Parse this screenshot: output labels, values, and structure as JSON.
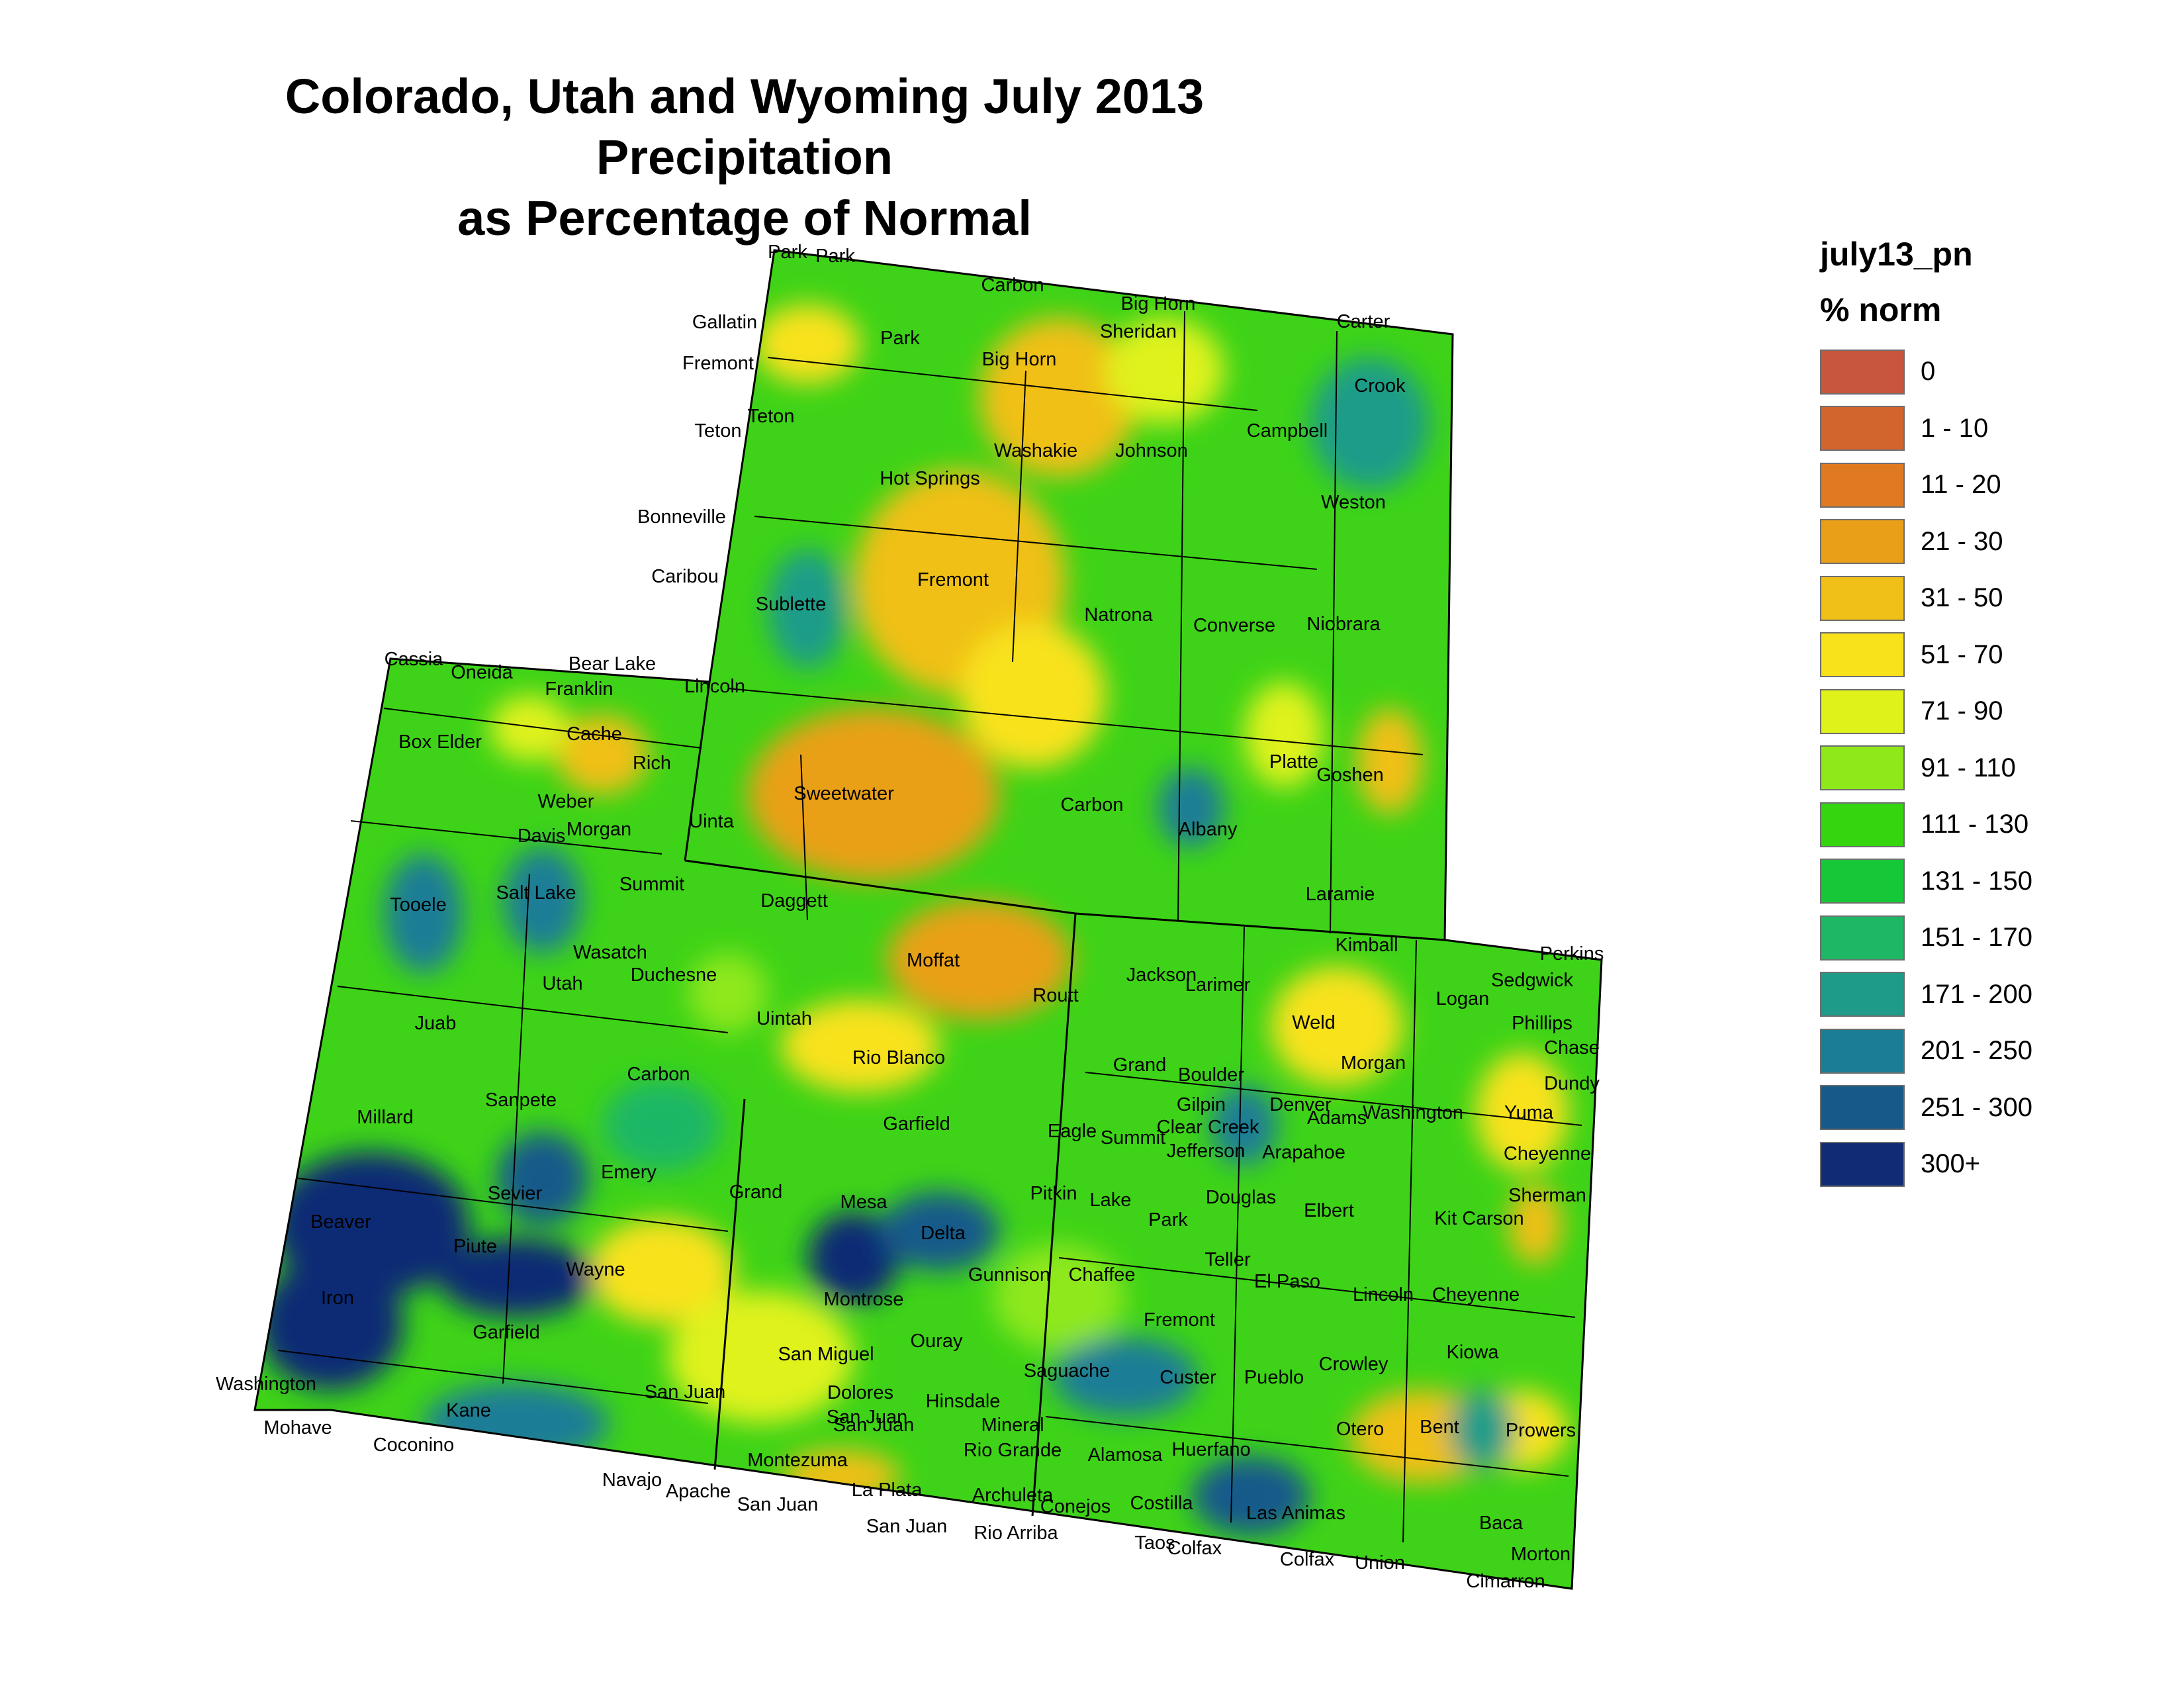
{
  "title": {
    "line1": "Colorado, Utah and Wyoming July 2013 Precipitation",
    "line2": "as Percentage of Normal"
  },
  "legend": {
    "field": "july13_pn",
    "unit": "% norm",
    "classes": [
      {
        "label": "0",
        "color": "#c8553d"
      },
      {
        "label": "1 - 10",
        "color": "#d2642e"
      },
      {
        "label": "11 - 20",
        "color": "#e07a22"
      },
      {
        "label": "21 - 30",
        "color": "#e9a018"
      },
      {
        "label": "31 - 50",
        "color": "#f0c019"
      },
      {
        "label": "51 - 70",
        "color": "#f8e21b"
      },
      {
        "label": "71 - 90",
        "color": "#dff21a"
      },
      {
        "label": "91 - 110",
        "color": "#8ee81a"
      },
      {
        "label": "111 - 130",
        "color": "#35d60f"
      },
      {
        "label": "131 - 150",
        "color": "#16c838"
      },
      {
        "label": "151 - 170",
        "color": "#1db766"
      },
      {
        "label": "171 - 200",
        "color": "#1e9c89"
      },
      {
        "label": "201 - 250",
        "color": "#1c7d96"
      },
      {
        "label": "251 - 300",
        "color": "#175a8a"
      },
      {
        "label": "300+",
        "color": "#112c74"
      }
    ]
  },
  "counties": [
    "Park",
    "Park",
    "Carbon",
    "Big Horn",
    "Sheridan",
    "Carter",
    "Gallatin",
    "Fremont",
    "Park",
    "Big Horn",
    "Crook",
    "Teton",
    "Teton",
    "Washakie",
    "Johnson",
    "Campbell",
    "Hot Springs",
    "Weston",
    "Bonneville",
    "Fremont",
    "Caribou",
    "Sublette",
    "Natrona",
    "Converse",
    "Niobrara",
    "Cassia",
    "Oneida",
    "Bear Lake",
    "Franklin",
    "Lincoln",
    "Cache",
    "Box Elder",
    "Rich",
    "Platte",
    "Goshen",
    "Sweetwater",
    "Weber",
    "Carbon",
    "Morgan",
    "Davis",
    "Uinta",
    "Albany",
    "Summit",
    "Salt Lake",
    "Tooele",
    "Daggett",
    "Laramie",
    "Kimball",
    "Perkins",
    "Wasatch",
    "Moffat",
    "Jackson",
    "Sedgwick",
    "Duchesne",
    "Larimer",
    "Logan",
    "Utah",
    "Routt",
    "Uintah",
    "Juab",
    "Weld",
    "Phillips",
    "Chase",
    "Rio Blanco",
    "Carbon",
    "Grand",
    "Morgan",
    "Boulder",
    "Dundy",
    "Sanpete",
    "Gilpin",
    "Denver",
    "Millard",
    "Washington",
    "Yuma",
    "Adams",
    "Garfield",
    "Eagle",
    "Clear Creek",
    "Summit",
    "Emery",
    "Jefferson",
    "Arapahoe",
    "Cheyenne",
    "Sevier",
    "Grand",
    "Mesa",
    "Pitkin",
    "Lake",
    "Douglas",
    "Sherman",
    "Elbert",
    "Beaver",
    "Park",
    "Kit Carson",
    "Piute",
    "Delta",
    "Wayne",
    "Gunnison",
    "Chaffee",
    "Teller",
    "El Paso",
    "Iron",
    "Lincoln",
    "Cheyenne",
    "Montrose",
    "Fremont",
    "Garfield",
    "Ouray",
    "San Miguel",
    "Kiowa",
    "Crowley",
    "Saguache",
    "Custer",
    "Pueblo",
    "Washington",
    "Dolores",
    "Hinsdale",
    "San Juan",
    "Kane",
    "San Juan",
    "Mineral",
    "Otero",
    "Bent",
    "Prowers",
    "Mohave",
    "Huerfano",
    "San Juan",
    "Coconino",
    "Rio Grande",
    "Alamosa",
    "Montezuma",
    "Navajo",
    "La Plata",
    "Archuleta",
    "Costilla",
    "Las Animas",
    "Apache",
    "San Juan",
    "Conejos",
    "San Juan",
    "Baca",
    "Rio Arriba",
    "Taos",
    "Colfax",
    "Colfax",
    "Union",
    "Morton",
    "Cimarron"
  ]
}
